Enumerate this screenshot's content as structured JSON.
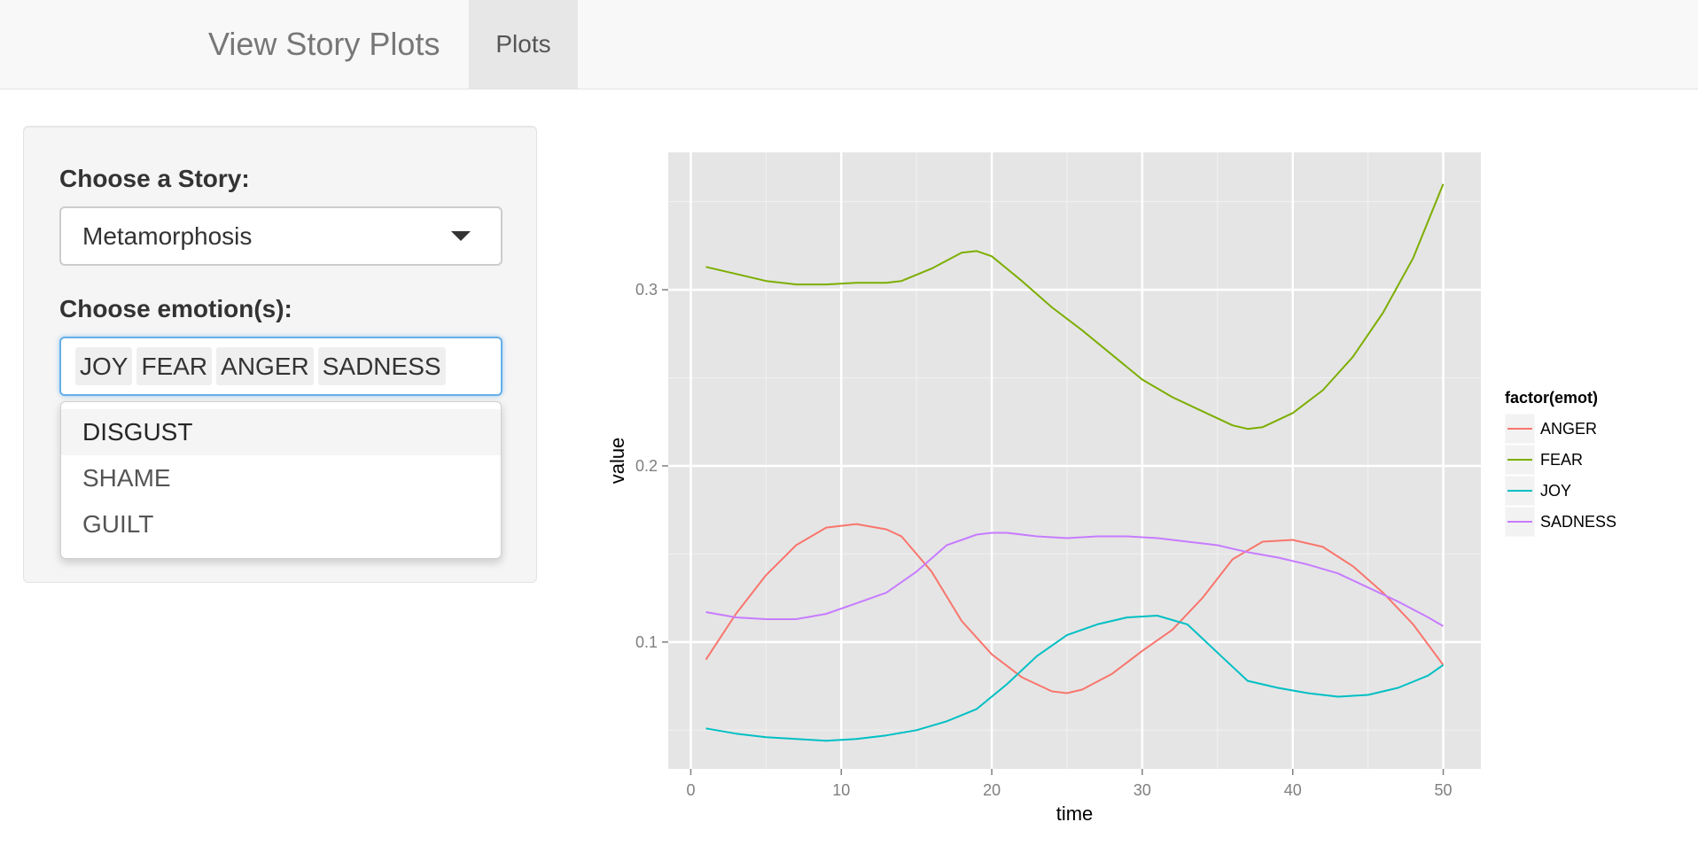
{
  "navbar": {
    "title": "View Story Plots",
    "tab_label": "Plots"
  },
  "sidebar": {
    "story_label": "Choose a Story:",
    "story_selected": "Metamorphosis",
    "emotion_label": "Choose emotion(s):",
    "emotion_chips": [
      "JOY",
      "FEAR",
      "ANGER",
      "SADNESS"
    ],
    "dropdown_options": [
      "DISGUST",
      "SHAME",
      "GUILT"
    ],
    "dropdown_active": "DISGUST"
  },
  "chart_data": {
    "type": "line",
    "title": "",
    "xlabel": "time",
    "ylabel": "value",
    "xlim": [
      -1.5,
      52.5
    ],
    "ylim": [
      0.028,
      0.378
    ],
    "x_ticks": [
      0,
      10,
      20,
      30,
      40,
      50
    ],
    "y_ticks": [
      0.1,
      0.2,
      0.3
    ],
    "y_tick_labels": [
      "0.1",
      "0.2",
      "0.3"
    ],
    "grid": true,
    "legend": {
      "title": "factor(emot)",
      "placement": "right"
    },
    "series": [
      {
        "name": "ANGER",
        "color": "#f8766d",
        "x": [
          1,
          3,
          5,
          7,
          9,
          11,
          13,
          14,
          16,
          18,
          20,
          22,
          24,
          25,
          26,
          28,
          30,
          32,
          34,
          36,
          38,
          40,
          42,
          44,
          46,
          48,
          50
        ],
        "values": [
          0.09,
          0.116,
          0.138,
          0.155,
          0.165,
          0.167,
          0.164,
          0.16,
          0.14,
          0.112,
          0.093,
          0.08,
          0.072,
          0.071,
          0.073,
          0.082,
          0.095,
          0.107,
          0.125,
          0.147,
          0.157,
          0.158,
          0.154,
          0.143,
          0.128,
          0.11,
          0.087
        ]
      },
      {
        "name": "FEAR",
        "color": "#7cae00",
        "x": [
          1,
          3,
          5,
          7,
          9,
          11,
          13,
          14,
          16,
          18,
          19,
          20,
          22,
          24,
          26,
          28,
          30,
          32,
          34,
          36,
          37,
          38,
          40,
          42,
          44,
          46,
          48,
          50
        ],
        "values": [
          0.313,
          0.309,
          0.305,
          0.303,
          0.303,
          0.304,
          0.304,
          0.305,
          0.312,
          0.321,
          0.322,
          0.319,
          0.305,
          0.29,
          0.277,
          0.263,
          0.249,
          0.239,
          0.231,
          0.223,
          0.221,
          0.222,
          0.23,
          0.243,
          0.262,
          0.287,
          0.318,
          0.36
        ]
      },
      {
        "name": "JOY",
        "color": "#00bfc4",
        "x": [
          1,
          3,
          5,
          7,
          9,
          11,
          13,
          15,
          17,
          19,
          21,
          23,
          25,
          27,
          29,
          31,
          33,
          35,
          37,
          39,
          41,
          43,
          45,
          47,
          49,
          50
        ],
        "values": [
          0.051,
          0.048,
          0.046,
          0.045,
          0.044,
          0.045,
          0.047,
          0.05,
          0.055,
          0.062,
          0.076,
          0.092,
          0.104,
          0.11,
          0.114,
          0.115,
          0.11,
          0.094,
          0.078,
          0.074,
          0.071,
          0.069,
          0.07,
          0.074,
          0.081,
          0.087
        ]
      },
      {
        "name": "SADNESS",
        "color": "#c77cff",
        "x": [
          1,
          3,
          5,
          7,
          9,
          11,
          13,
          15,
          17,
          19,
          20,
          21,
          23,
          25,
          27,
          29,
          31,
          33,
          35,
          37,
          39,
          41,
          43,
          45,
          47,
          49,
          50
        ],
        "values": [
          0.117,
          0.114,
          0.113,
          0.113,
          0.116,
          0.122,
          0.128,
          0.14,
          0.155,
          0.161,
          0.162,
          0.162,
          0.16,
          0.159,
          0.16,
          0.16,
          0.159,
          0.157,
          0.155,
          0.151,
          0.148,
          0.144,
          0.139,
          0.131,
          0.123,
          0.114,
          0.109
        ]
      }
    ]
  }
}
